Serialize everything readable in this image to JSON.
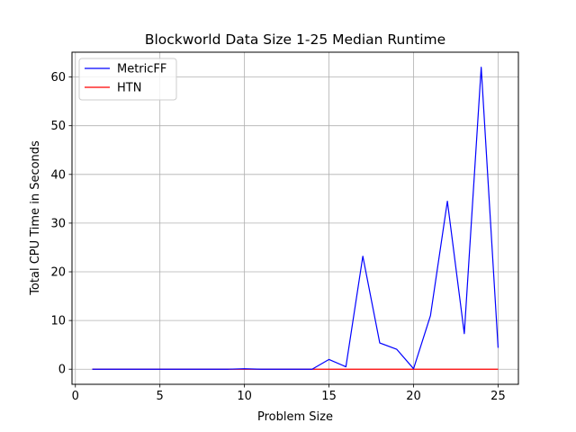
{
  "chart_data": {
    "type": "line",
    "title": "Blockworld Data Size 1-25 Median Runtime",
    "xlabel": "Problem Size",
    "ylabel": "Total CPU Time in Seconds",
    "xlim": [
      -0.2,
      26.2
    ],
    "ylim": [
      -3.1,
      65.1
    ],
    "xticks": [
      0,
      5,
      10,
      15,
      20,
      25
    ],
    "yticks": [
      0,
      10,
      20,
      30,
      40,
      50,
      60
    ],
    "grid": true,
    "legend_position": "top-left",
    "x": [
      1,
      2,
      3,
      4,
      5,
      6,
      7,
      8,
      9,
      10,
      11,
      12,
      13,
      14,
      15,
      16,
      17,
      18,
      19,
      20,
      21,
      22,
      23,
      24,
      25
    ],
    "series": [
      {
        "name": "MetricFF",
        "color": "#0000ff",
        "values": [
          0,
          0,
          0,
          0,
          0,
          0,
          0,
          0,
          0,
          0.1,
          0,
          0,
          0,
          0,
          2.0,
          0.5,
          23.2,
          5.4,
          4.1,
          0.1,
          11.0,
          34.5,
          7.3,
          62.0,
          4.4
        ]
      },
      {
        "name": "HTN",
        "color": "#ff0000",
        "values": [
          0,
          0,
          0,
          0,
          0,
          0,
          0,
          0,
          0,
          0,
          0,
          0,
          0,
          0,
          0,
          0,
          0,
          0,
          0,
          0,
          0,
          0,
          0,
          0,
          0
        ]
      }
    ]
  }
}
